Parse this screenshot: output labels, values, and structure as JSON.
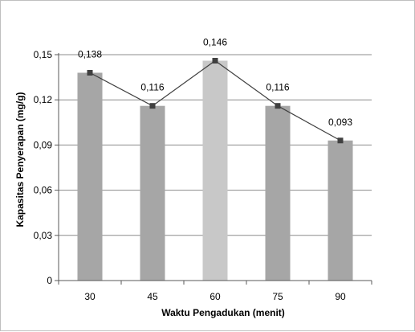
{
  "chart_data": {
    "type": "bar",
    "categories": [
      "30",
      "45",
      "60",
      "75",
      "90"
    ],
    "values": [
      0.138,
      0.116,
      0.146,
      0.116,
      0.093
    ],
    "data_labels": [
      "0,138",
      "0,116",
      "0,146",
      "0,116",
      "0,093"
    ],
    "line_overlay": true,
    "xlabel": "Waktu Pengadukan (menit)",
    "ylabel": "Kapasitas Penyerapan (mg/g)",
    "ylim": [
      0,
      0.15
    ],
    "yticks": [
      0,
      0.03,
      0.06,
      0.09,
      0.12,
      0.15
    ],
    "ytick_labels": [
      "0",
      "0,03",
      "0,06",
      "0,09",
      "0,12",
      "0,15"
    ],
    "grid": true,
    "colors": {
      "bar": "#a6a6a6",
      "highlight_bar": "#c8c8c8",
      "line": "#404040",
      "marker": "#404040",
      "grid": "#8c8c8c"
    },
    "highlight_index": 2
  }
}
